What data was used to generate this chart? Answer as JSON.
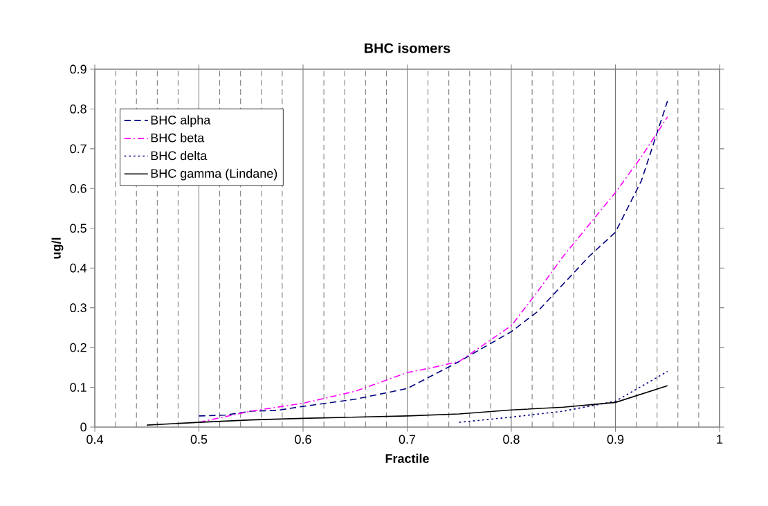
{
  "chart_data": {
    "type": "line",
    "title": "BHC isomers",
    "xlabel": "Fractile",
    "ylabel": "ug/l",
    "xlim": [
      0.4,
      1
    ],
    "ylim": [
      0,
      0.9
    ],
    "xticks": [
      0.4,
      {
        "value": 0.42,
        "label": null
      },
      {
        "value": 0.44,
        "label": null
      },
      {
        "value": 0.46,
        "label": null
      },
      {
        "value": 0.48,
        "label": null
      },
      0.5,
      {
        "value": 0.52,
        "label": null
      },
      {
        "value": 0.54,
        "label": null
      },
      {
        "value": 0.56,
        "label": null
      },
      {
        "value": 0.58,
        "label": null
      },
      0.6,
      {
        "value": 0.62,
        "label": null
      },
      {
        "value": 0.64,
        "label": null
      },
      {
        "value": 0.66,
        "label": null
      },
      {
        "value": 0.68,
        "label": null
      },
      0.7,
      {
        "value": 0.72,
        "label": null
      },
      {
        "value": 0.74,
        "label": null
      },
      {
        "value": 0.76,
        "label": null
      },
      {
        "value": 0.78,
        "label": null
      },
      0.8,
      {
        "value": 0.82,
        "label": null
      },
      {
        "value": 0.84,
        "label": null
      },
      {
        "value": 0.86,
        "label": null
      },
      {
        "value": 0.88,
        "label": null
      },
      0.9,
      {
        "value": 0.92,
        "label": null
      },
      {
        "value": 0.94,
        "label": null
      },
      {
        "value": 0.96,
        "label": null
      },
      {
        "value": 0.98,
        "label": null
      },
      1
    ],
    "yticks": [
      0,
      0.1,
      0.2,
      0.3,
      0.4,
      0.5,
      0.6,
      0.7,
      0.8,
      0.9
    ],
    "grid": "x",
    "legend": "top left",
    "marker": "none",
    "series": [
      {
        "name": "BHC alpha",
        "color": "#000080",
        "line_style": "dashed",
        "x": [
          0.5,
          0.525,
          0.55,
          0.575,
          0.6,
          0.65,
          0.7,
          0.75,
          0.8,
          0.825,
          0.85,
          0.875,
          0.9,
          0.925,
          0.95
        ],
        "values": [
          0.028,
          0.03,
          0.04,
          0.042,
          0.052,
          0.07,
          0.097,
          0.165,
          0.24,
          0.29,
          0.36,
          0.43,
          0.49,
          0.62,
          0.82
        ]
      },
      {
        "name": "BHC beta",
        "color": "#ff00ff",
        "line_style": "dashdot",
        "x": [
          0.5,
          0.55,
          0.6,
          0.65,
          0.7,
          0.725,
          0.75,
          0.8,
          0.825,
          0.85,
          0.875,
          0.9,
          0.925,
          0.95
        ],
        "values": [
          0.012,
          0.04,
          0.06,
          0.09,
          0.137,
          0.15,
          0.165,
          0.255,
          0.34,
          0.43,
          0.51,
          0.59,
          0.68,
          0.78
        ]
      },
      {
        "name": "BHC delta",
        "color": "#000080",
        "line_style": "dotted",
        "x": [
          0.75,
          0.8,
          0.85,
          0.9,
          0.95
        ],
        "values": [
          0.012,
          0.025,
          0.04,
          0.065,
          0.14
        ]
      },
      {
        "name": "BHC gamma (Lindane)",
        "color": "#000000",
        "line_style": "solid",
        "x": [
          0.45,
          0.5,
          0.55,
          0.6,
          0.7,
          0.75,
          0.8,
          0.85,
          0.9,
          0.95
        ],
        "values": [
          0.005,
          0.012,
          0.018,
          0.022,
          0.028,
          0.033,
          0.043,
          0.05,
          0.062,
          0.104
        ]
      }
    ]
  }
}
